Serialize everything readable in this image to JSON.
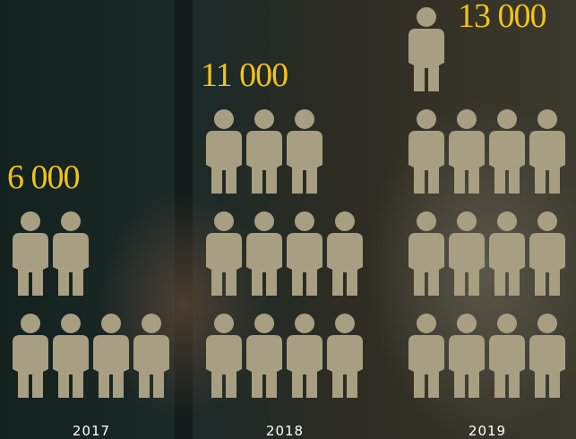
{
  "chart_data": {
    "type": "pictogram",
    "categories": [
      "2017",
      "2018",
      "2019"
    ],
    "values": [
      6000,
      11000,
      13000
    ],
    "value_labels": [
      "6 000",
      "11 000",
      "13 000"
    ],
    "color": "#a89f82"
  }
}
